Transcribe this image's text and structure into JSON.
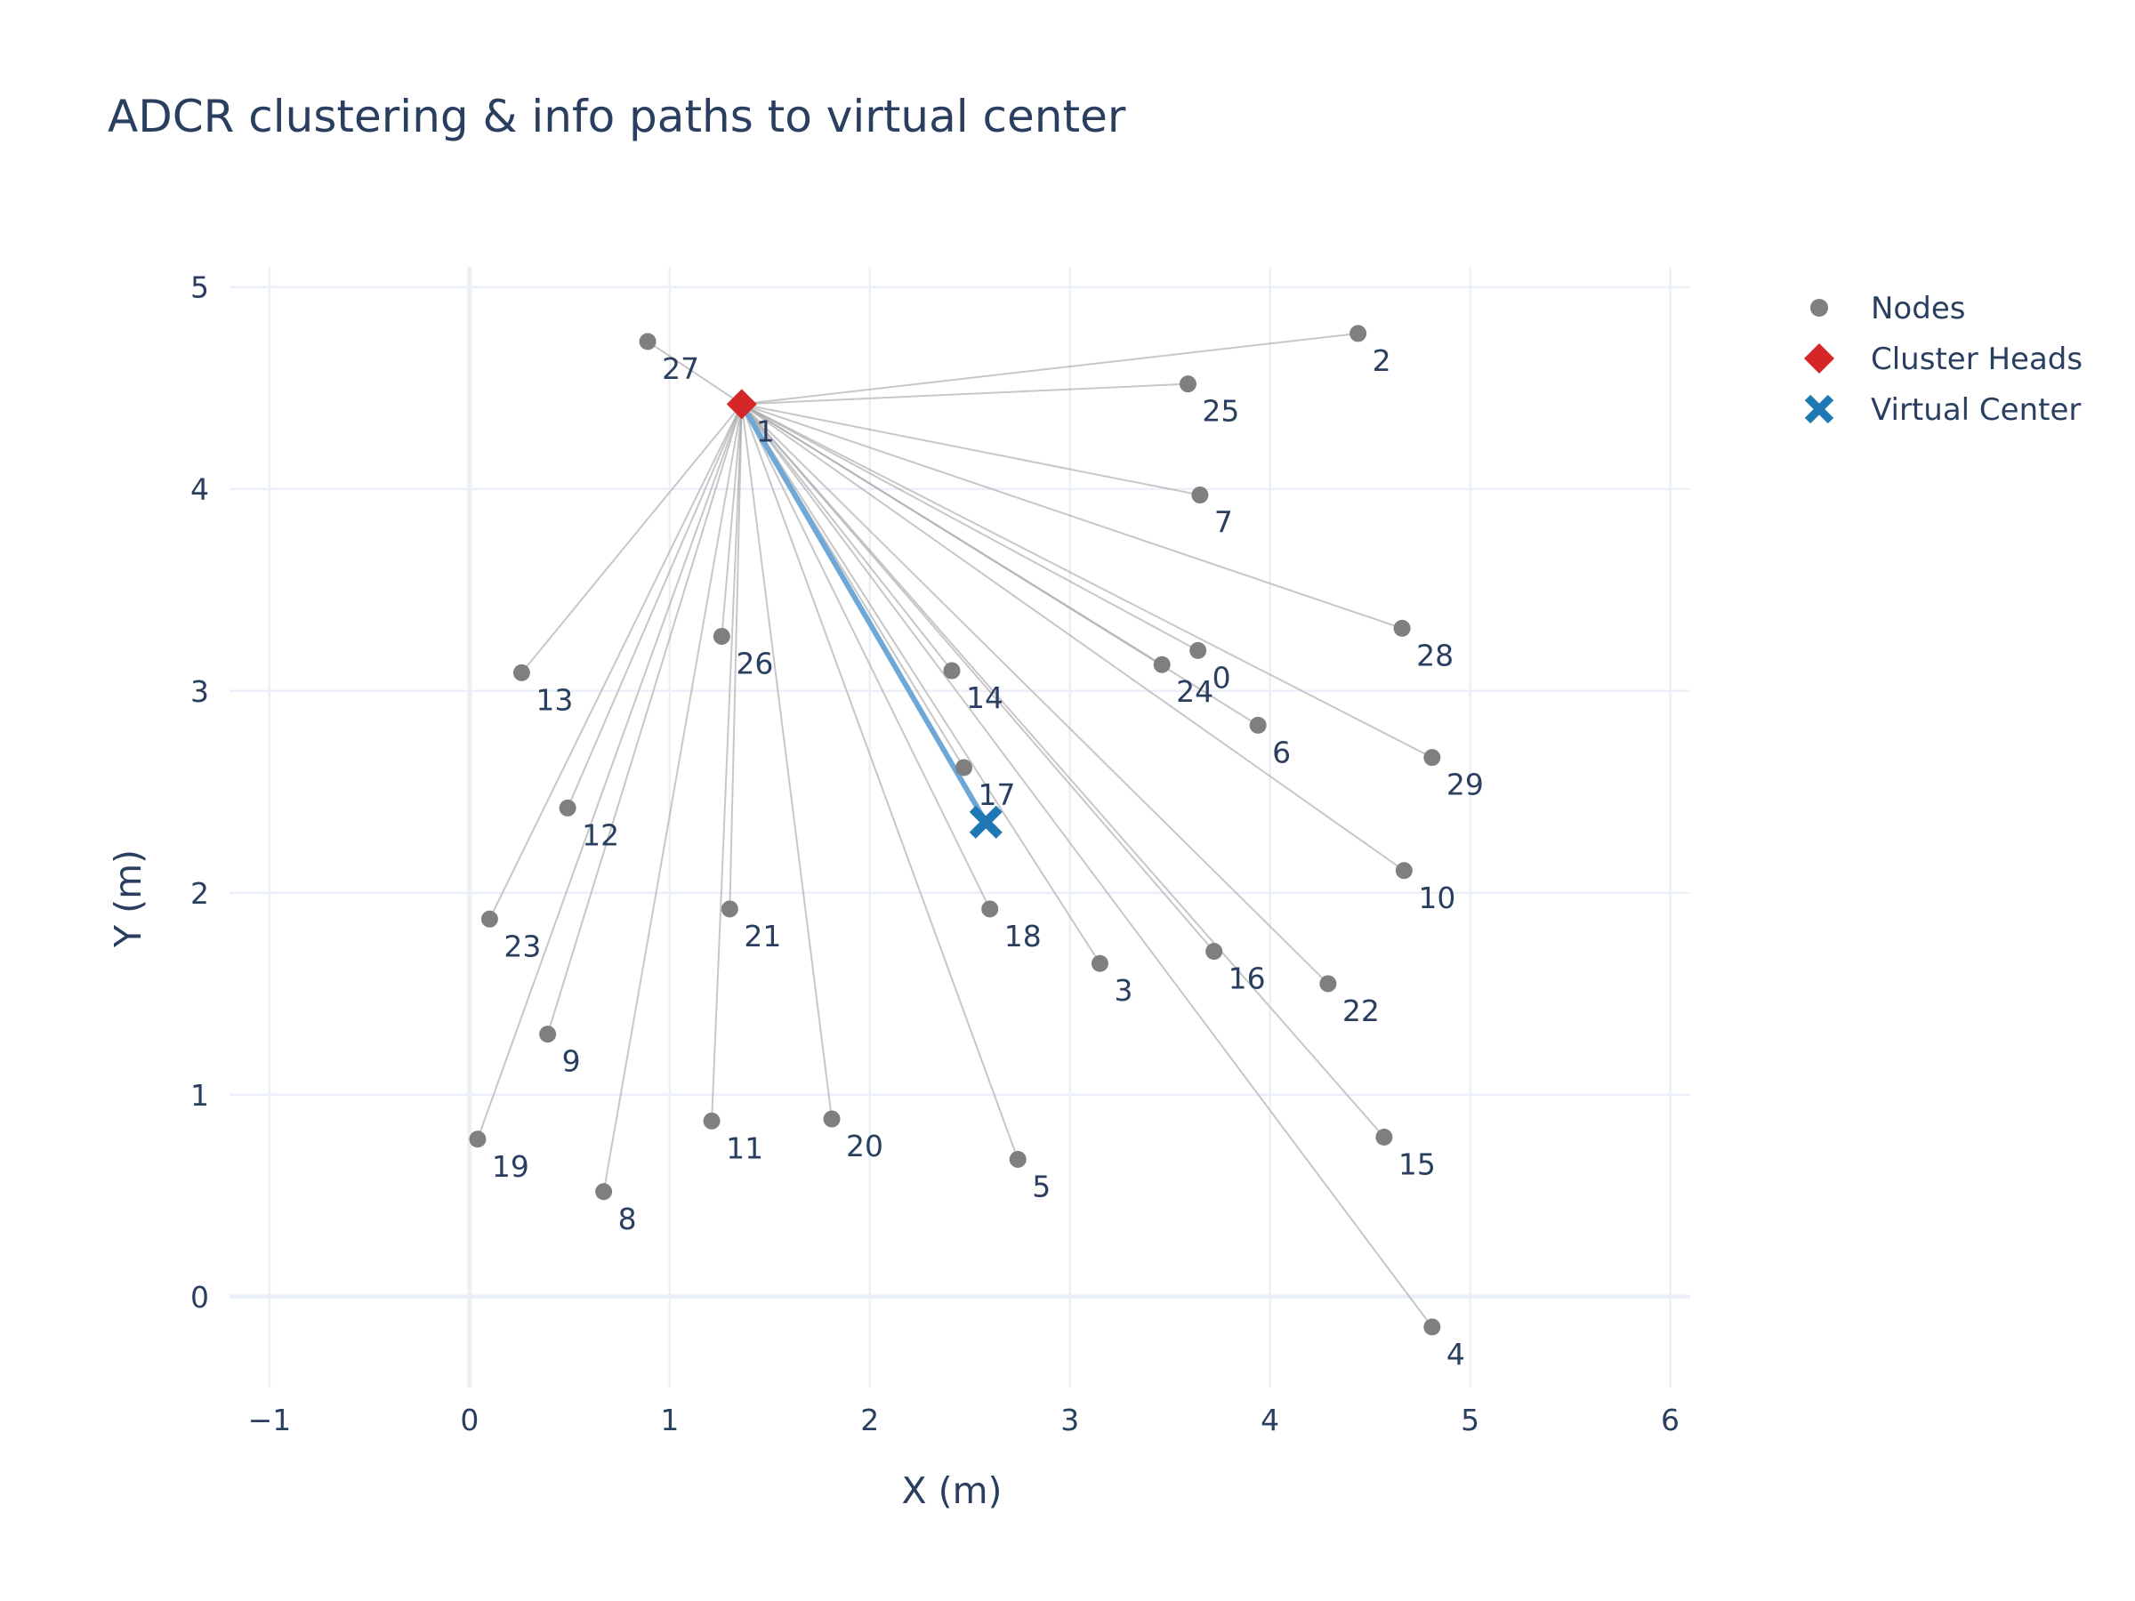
{
  "chart_data": {
    "type": "scatter",
    "title": "ADCR clustering & info paths to virtual center",
    "xlabel": "X (m)",
    "ylabel": "Y (m)",
    "xlim": [
      -1.2,
      6.1
    ],
    "ylim": [
      -0.45,
      5.1
    ],
    "xticks": [
      -1,
      0,
      1,
      2,
      3,
      4,
      5,
      6
    ],
    "xtick_labels": [
      "−1",
      "0",
      "1",
      "2",
      "3",
      "4",
      "5",
      "6"
    ],
    "yticks": [
      0,
      1,
      2,
      3,
      4,
      5
    ],
    "ytick_labels": [
      "0",
      "1",
      "2",
      "3",
      "4",
      "5"
    ],
    "grid": true,
    "legend_position": "top-right",
    "colors": {
      "nodes": "#7f7f7f",
      "cluster_heads": "#d62728",
      "virtual_center": "#1f77b4",
      "links": "#a9a9a9",
      "path": "#6fa8d6",
      "grid": "#ebf0f8",
      "text": "#2a3f5f"
    },
    "series": [
      {
        "name": "Nodes",
        "marker": "circle",
        "points": [
          {
            "id": "0",
            "x": 3.64,
            "y": 3.2
          },
          {
            "id": "1",
            "x": 1.36,
            "y": 4.42
          },
          {
            "id": "2",
            "x": 4.44,
            "y": 4.77
          },
          {
            "id": "3",
            "x": 3.15,
            "y": 1.65
          },
          {
            "id": "4",
            "x": 4.81,
            "y": -0.15
          },
          {
            "id": "5",
            "x": 2.74,
            "y": 0.68
          },
          {
            "id": "6",
            "x": 3.94,
            "y": 2.83
          },
          {
            "id": "7",
            "x": 3.65,
            "y": 3.97
          },
          {
            "id": "8",
            "x": 0.67,
            "y": 0.52
          },
          {
            "id": "9",
            "x": 0.39,
            "y": 1.3
          },
          {
            "id": "10",
            "x": 4.67,
            "y": 2.11
          },
          {
            "id": "11",
            "x": 1.21,
            "y": 0.87
          },
          {
            "id": "12",
            "x": 0.49,
            "y": 2.42
          },
          {
            "id": "13",
            "x": 0.26,
            "y": 3.09
          },
          {
            "id": "14",
            "x": 2.41,
            "y": 3.1
          },
          {
            "id": "15",
            "x": 4.57,
            "y": 0.79
          },
          {
            "id": "16",
            "x": 3.72,
            "y": 1.71
          },
          {
            "id": "17",
            "x": 2.47,
            "y": 2.62
          },
          {
            "id": "18",
            "x": 2.6,
            "y": 1.92
          },
          {
            "id": "19",
            "x": 0.04,
            "y": 0.78
          },
          {
            "id": "20",
            "x": 1.81,
            "y": 0.88
          },
          {
            "id": "21",
            "x": 1.3,
            "y": 1.92
          },
          {
            "id": "22",
            "x": 4.29,
            "y": 1.55
          },
          {
            "id": "23",
            "x": 0.1,
            "y": 1.87
          },
          {
            "id": "24",
            "x": 3.46,
            "y": 3.13
          },
          {
            "id": "25",
            "x": 3.59,
            "y": 4.52
          },
          {
            "id": "26",
            "x": 1.26,
            "y": 3.27
          },
          {
            "id": "27",
            "x": 0.89,
            "y": 4.73
          },
          {
            "id": "28",
            "x": 4.66,
            "y": 3.31
          },
          {
            "id": "29",
            "x": 4.81,
            "y": 2.67
          }
        ]
      },
      {
        "name": "Cluster Heads",
        "marker": "diamond",
        "points": [
          {
            "id": "1",
            "x": 1.36,
            "y": 4.42
          }
        ]
      },
      {
        "name": "Virtual Center",
        "marker": "x",
        "points": [
          {
            "x": 2.58,
            "y": 2.35
          }
        ]
      }
    ],
    "links": {
      "head": "1",
      "members": [
        "0",
        "2",
        "3",
        "4",
        "5",
        "6",
        "7",
        "8",
        "9",
        "10",
        "11",
        "12",
        "13",
        "14",
        "15",
        "16",
        "17",
        "18",
        "19",
        "20",
        "21",
        "22",
        "23",
        "24",
        "25",
        "26",
        "27",
        "28",
        "29"
      ]
    },
    "info_path": [
      {
        "x": 1.36,
        "y": 4.42
      },
      {
        "x": 2.58,
        "y": 2.35
      }
    ]
  }
}
